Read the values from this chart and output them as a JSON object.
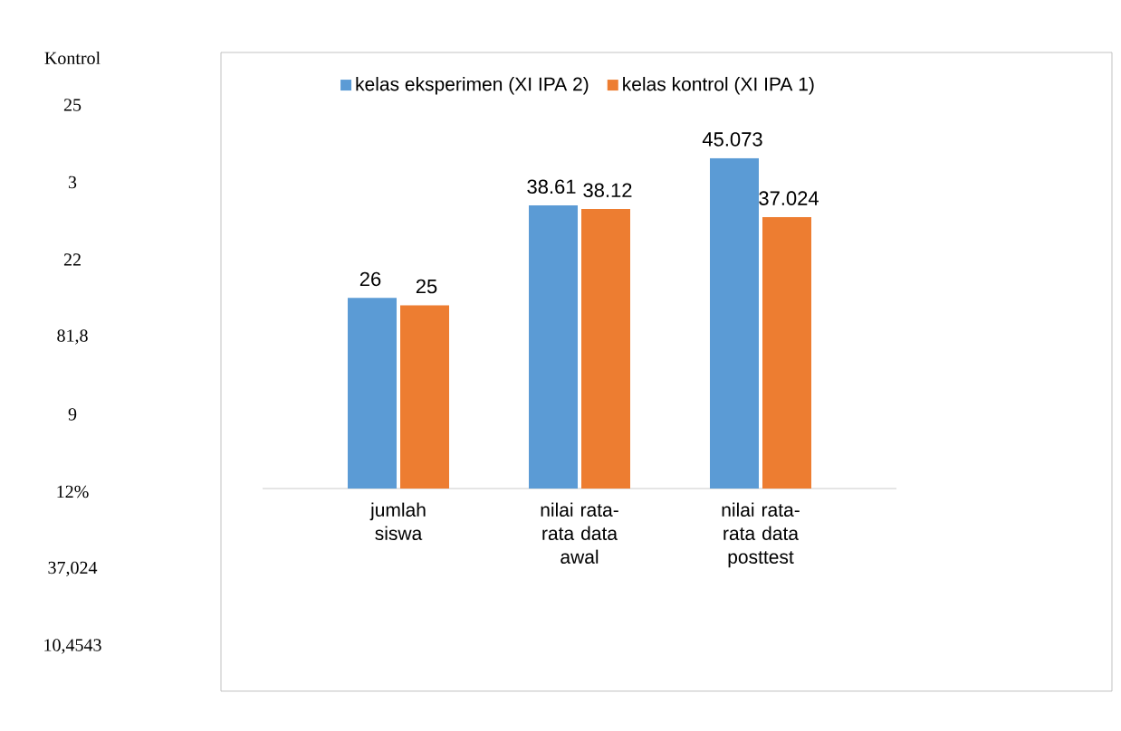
{
  "chart_data": {
    "type": "bar",
    "categories": [
      "jumlah siswa",
      "nilai rata-rata data awal",
      "nilai rata-rata data posttest"
    ],
    "series": [
      {
        "name": "kelas eksperimen (XI IPA 2)",
        "color": "#5b9bd5",
        "values": [
          26,
          38.61,
          45.073
        ]
      },
      {
        "name": "kelas kontrol (XI IPA 1)",
        "color": "#ed7d31",
        "values": [
          25,
          38.12,
          37.024
        ]
      }
    ],
    "data_labels": true,
    "legend": "top",
    "annotations": [
      "Kontrol",
      "25",
      "3",
      "22",
      "81,8",
      "9",
      "12%",
      "37,024",
      "10,4543"
    ]
  }
}
